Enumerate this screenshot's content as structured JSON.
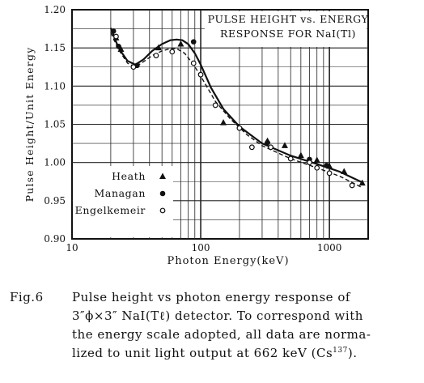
{
  "chart_data": {
    "type": "scatter",
    "title": "PULSE HEIGHT vs. ENERGY\nRESPONSE FOR NaI(Tl)",
    "xlabel": "Photon Energy(keV)",
    "ylabel": "Pulse Height/Unit Energy",
    "xscale": "log",
    "xlim": [
      10,
      2000
    ],
    "ylim": [
      0.9,
      1.2
    ],
    "x_ticks": [
      10,
      100,
      1000
    ],
    "x_tick_labels": [
      "10",
      "100",
      "1000"
    ],
    "y_ticks": [
      0.9,
      0.95,
      1.0,
      1.05,
      1.1,
      1.15,
      1.2
    ],
    "y_tick_labels": [
      "0.90",
      "0.95",
      "1.00",
      "1.05",
      "1.10",
      "1.15",
      "1.20"
    ],
    "grid": true,
    "legend_position": "lower-left",
    "series": [
      {
        "name": "Heath",
        "marker": "triangle",
        "x": [
          22,
          24,
          47,
          70,
          150,
          330,
          450,
          600,
          800,
          1000,
          1300,
          1800
        ],
        "y": [
          1.163,
          1.148,
          1.15,
          1.155,
          1.052,
          1.028,
          1.022,
          1.009,
          1.003,
          0.995,
          0.988,
          0.973
        ]
      },
      {
        "name": "Managan",
        "marker": "filled-circle",
        "x": [
          21,
          23,
          32,
          88,
          200,
          330,
          700,
          950
        ],
        "y": [
          1.172,
          1.152,
          1.127,
          1.158,
          1.045,
          1.026,
          1.004,
          0.996
        ]
      },
      {
        "name": "Engelkemeir",
        "marker": "open-circle",
        "x": [
          22,
          30,
          45,
          60,
          88,
          100,
          130,
          200,
          250,
          350,
          500,
          700,
          800,
          1000,
          1500
        ],
        "y": [
          1.165,
          1.125,
          1.14,
          1.145,
          1.13,
          1.115,
          1.075,
          1.045,
          1.02,
          1.02,
          1.005,
          1.0,
          0.993,
          0.986,
          0.97
        ]
      }
    ],
    "curves": [
      {
        "style": "solid",
        "x": [
          20,
          23,
          27,
          31,
          36,
          42,
          50,
          58,
          65,
          72,
          80,
          90,
          100,
          120,
          150,
          200,
          300,
          500,
          800,
          1200,
          1800
        ],
        "y": [
          1.176,
          1.15,
          1.133,
          1.128,
          1.135,
          1.146,
          1.155,
          1.16,
          1.161,
          1.16,
          1.155,
          1.143,
          1.128,
          1.098,
          1.07,
          1.047,
          1.025,
          1.009,
          0.998,
          0.988,
          0.974
        ]
      },
      {
        "style": "dashed",
        "x": [
          20,
          23,
          27,
          31,
          36,
          42,
          50,
          58,
          65,
          75,
          88,
          100,
          130,
          170,
          230,
          300,
          500,
          800,
          1200,
          1800
        ],
        "y": [
          1.17,
          1.148,
          1.13,
          1.125,
          1.132,
          1.14,
          1.146,
          1.149,
          1.149,
          1.143,
          1.128,
          1.113,
          1.08,
          1.057,
          1.036,
          1.022,
          1.005,
          0.993,
          0.982,
          0.967
        ]
      }
    ]
  },
  "caption": {
    "prefix": "Fig.6",
    "line1": "Pulse height vs photon energy response of",
    "line2": "3″ϕ×3″ NaI(Tℓ) detector. To correspond with",
    "line3": "the energy scale adopted, all data are norma-",
    "line4_pre": "lized to unit light output at 662 keV (Cs",
    "line4_sup": "137",
    "line4_post": ")."
  }
}
